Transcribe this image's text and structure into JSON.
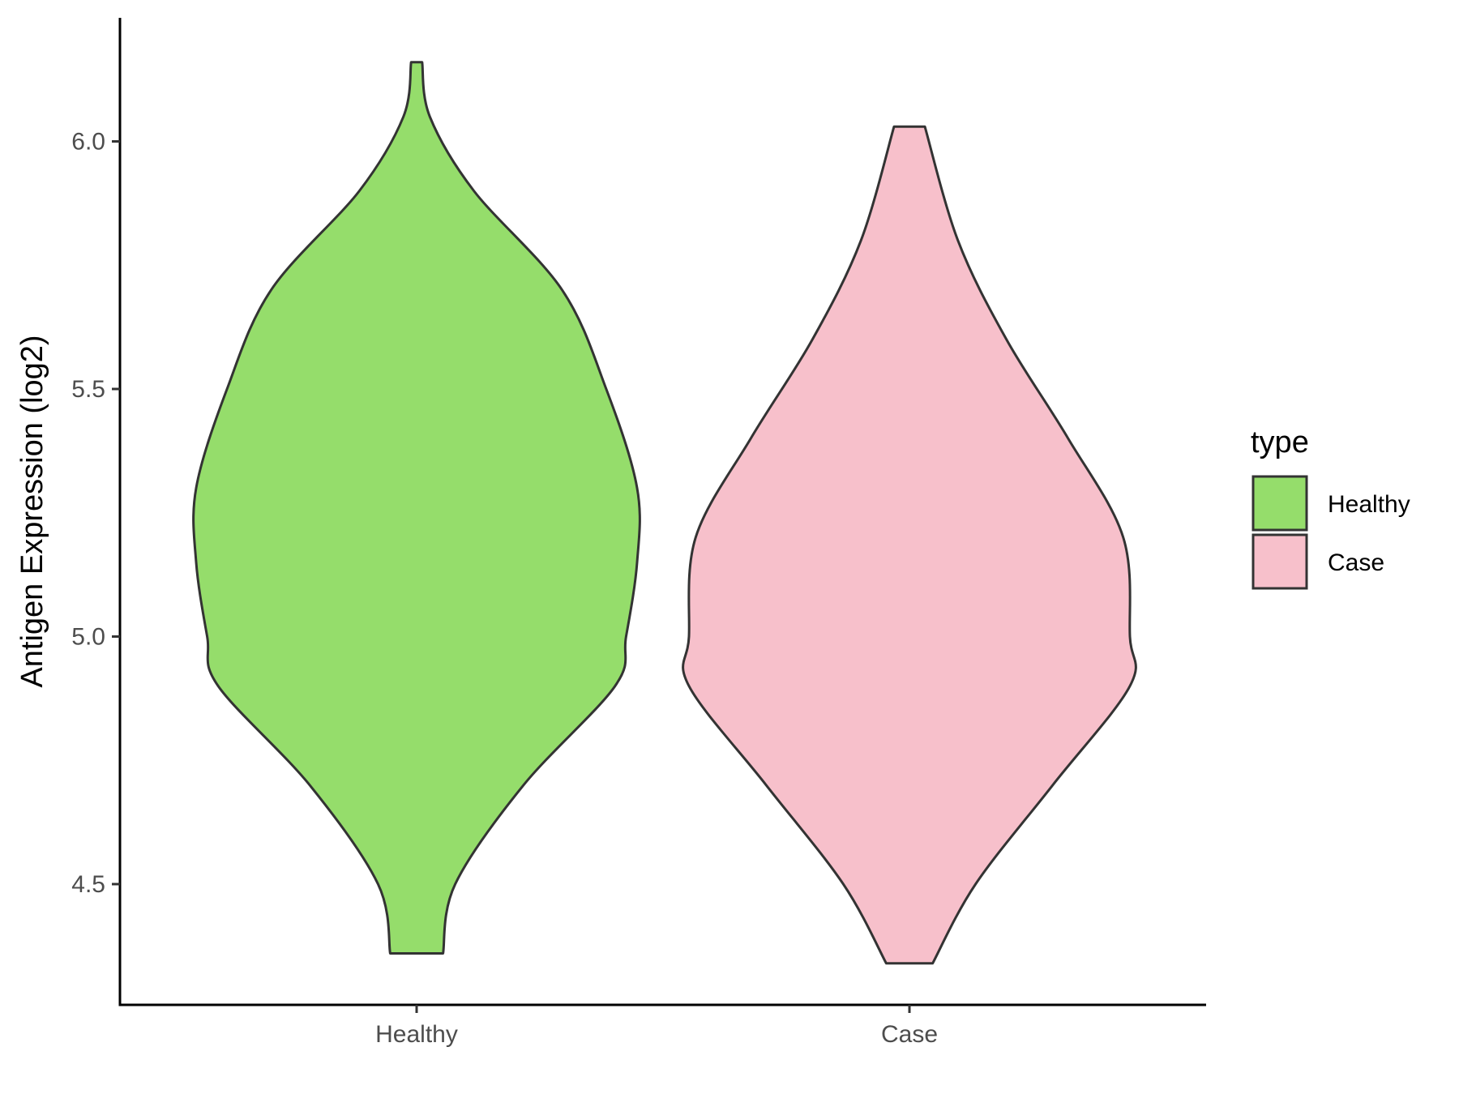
{
  "chart_data": {
    "type": "violin",
    "title": "",
    "xlabel": "",
    "ylabel": "Antigen Expression (log2)",
    "categories": [
      "Healthy",
      "Case"
    ],
    "ylim": [
      4.28,
      6.25
    ],
    "yticks": [
      4.5,
      5.0,
      5.5,
      6.0
    ],
    "ytick_labels": [
      "4.5",
      "5.0",
      "5.5",
      "6.0"
    ],
    "grid": false,
    "legend": {
      "title": "type",
      "position": "right",
      "entries": [
        {
          "label": "Healthy",
          "color": "#95DD6B"
        },
        {
          "label": "Case",
          "color": "#F7C0CB"
        }
      ]
    },
    "series": [
      {
        "name": "Healthy",
        "color": "#95DD6B",
        "min": 4.36,
        "max": 6.16,
        "density": [
          [
            4.36,
            0.12
          ],
          [
            4.5,
            0.175
          ],
          [
            4.7,
            0.485
          ],
          [
            4.9,
            0.9
          ],
          [
            5.0,
            0.95
          ],
          [
            5.15,
            1.0
          ],
          [
            5.3,
            1.0
          ],
          [
            5.5,
            0.86
          ],
          [
            5.7,
            0.66
          ],
          [
            5.9,
            0.26
          ],
          [
            6.05,
            0.06
          ],
          [
            6.16,
            0.025
          ]
        ]
      },
      {
        "name": "Case",
        "color": "#F7C0CB",
        "min": 4.34,
        "max": 6.03,
        "density": [
          [
            4.34,
            0.105
          ],
          [
            4.5,
            0.3
          ],
          [
            4.7,
            0.65
          ],
          [
            4.9,
            1.0
          ],
          [
            5.0,
            1.0
          ],
          [
            5.2,
            0.97
          ],
          [
            5.4,
            0.72
          ],
          [
            5.6,
            0.44
          ],
          [
            5.8,
            0.22
          ],
          [
            6.03,
            0.07
          ]
        ]
      }
    ]
  }
}
